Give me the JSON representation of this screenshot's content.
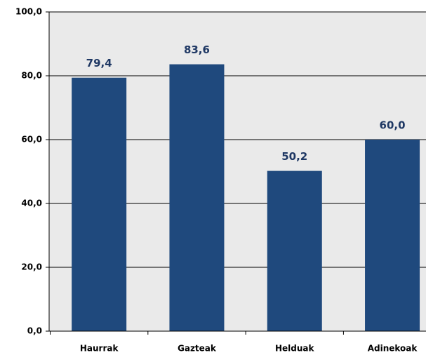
{
  "chart_data": {
    "type": "bar",
    "categories": [
      "Haurrak",
      "Gazteak",
      "Helduak",
      "Adinekoak"
    ],
    "values": [
      79.4,
      83.6,
      50.2,
      60.0
    ],
    "value_labels": [
      "79,4",
      "83,6",
      "50,2",
      "60,0"
    ],
    "color": "#1f497d",
    "ylim": [
      0,
      100
    ],
    "yticks": [
      {
        "value": 0,
        "label": "0,0"
      },
      {
        "value": 20,
        "label": "20,0"
      },
      {
        "value": 40,
        "label": "40,0"
      },
      {
        "value": 60,
        "label": "60,0"
      },
      {
        "value": 80,
        "label": "80,0"
      },
      {
        "value": 100,
        "label": "100,0"
      }
    ],
    "grid": true
  }
}
